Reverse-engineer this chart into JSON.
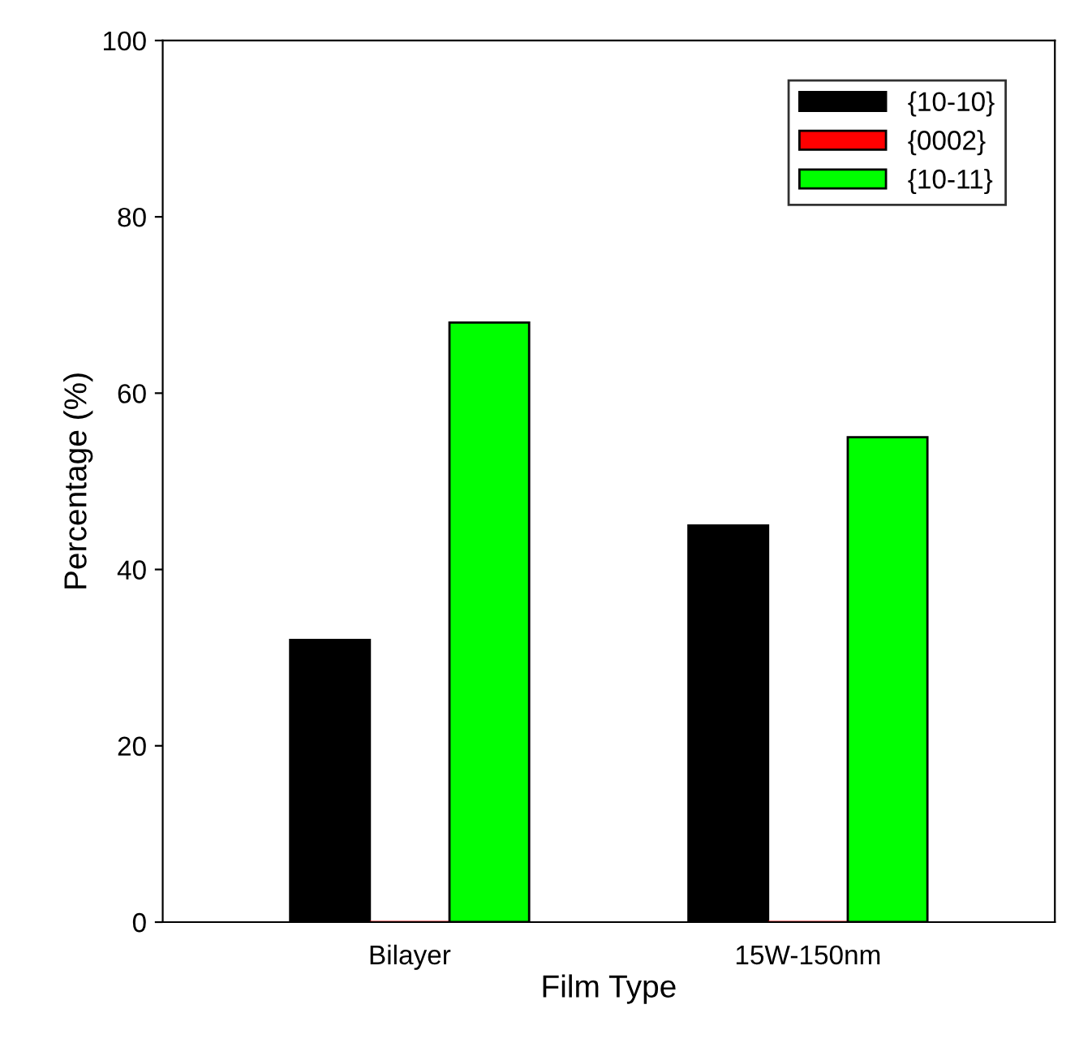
{
  "chart_data": {
    "type": "bar",
    "xlabel": "Film Type",
    "ylabel": "Percentage (%)",
    "categories": [
      "Bilayer",
      "15W-150nm"
    ],
    "series": [
      {
        "name": "{10-10}",
        "color": "#000000",
        "values": [
          32,
          45
        ]
      },
      {
        "name": "{0002}",
        "color": "#ff0000",
        "values": [
          0,
          0
        ]
      },
      {
        "name": "{10-11}",
        "color": "#00ff00",
        "values": [
          68,
          55
        ]
      }
    ],
    "ylim": [
      0,
      100
    ],
    "yticks": [
      0,
      20,
      40,
      60,
      80,
      100
    ],
    "legend": "top right",
    "grid": false
  }
}
